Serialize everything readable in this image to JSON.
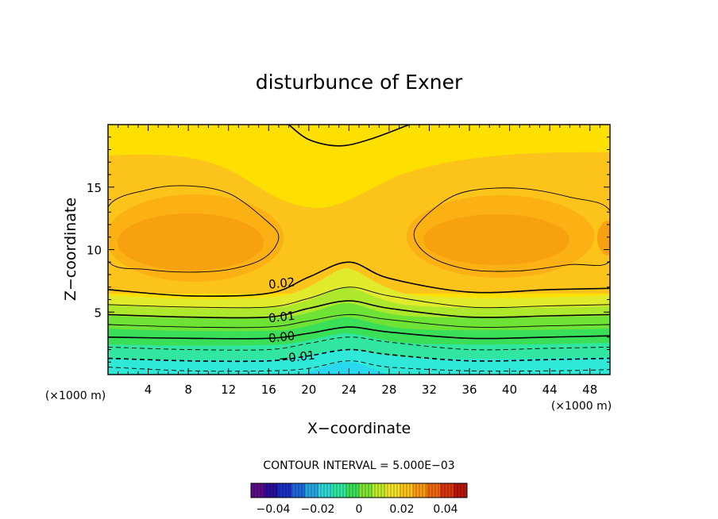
{
  "chart_data": {
    "type": "contour",
    "title": "disturbunce of Exner",
    "xlabel": "X−coordinate",
    "ylabel": "Z−coordinate",
    "x_unit_label": "(×1000 m)",
    "y_unit_label": "(×1000 m)",
    "xlim": [
      0,
      50
    ],
    "ylim": [
      0,
      20
    ],
    "x_ticks": [
      4,
      8,
      12,
      16,
      20,
      24,
      28,
      32,
      36,
      40,
      44,
      48
    ],
    "y_ticks": [
      5,
      10,
      15
    ],
    "contour_interval_label": "CONTOUR INTERVAL = 5.000E−03",
    "contour_interval": 0.005,
    "contour_labels": [
      {
        "text": "0.02",
        "x": 17.3,
        "y": 7.3
      },
      {
        "text": "0.01",
        "x": 17.3,
        "y": 4.6
      },
      {
        "text": "0.00",
        "x": 17.3,
        "y": 3.0
      },
      {
        "text": "−0.01",
        "x": 18.8,
        "y": 1.4
      }
    ],
    "contour_lines": [
      {
        "level": -0.015,
        "style": "dashed",
        "points": [
          [
            0,
            0.6
          ],
          [
            8,
            0.3
          ],
          [
            16,
            0.3
          ],
          [
            20,
            0.5
          ],
          [
            24,
            1.1
          ],
          [
            28,
            0.6
          ],
          [
            36,
            0.3
          ],
          [
            44,
            0.3
          ],
          [
            50,
            0.4
          ]
        ]
      },
      {
        "level": -0.01,
        "style": "dashed",
        "points": [
          [
            0,
            1.3
          ],
          [
            8,
            1.1
          ],
          [
            16,
            1.1
          ],
          [
            20,
            1.5
          ],
          [
            24,
            2.0
          ],
          [
            28,
            1.6
          ],
          [
            36,
            1.1
          ],
          [
            44,
            1.2
          ],
          [
            50,
            1.3
          ]
        ]
      },
      {
        "level": -0.005,
        "style": "dashed",
        "points": [
          [
            0,
            2.2
          ],
          [
            8,
            2.0
          ],
          [
            16,
            2.0
          ],
          [
            20,
            2.5
          ],
          [
            24,
            3.0
          ],
          [
            28,
            2.6
          ],
          [
            36,
            2.0
          ],
          [
            44,
            2.1
          ],
          [
            50,
            2.2
          ]
        ]
      },
      {
        "level": 0.0,
        "style": "solid",
        "points": [
          [
            0,
            3.0
          ],
          [
            8,
            2.9
          ],
          [
            16,
            2.9
          ],
          [
            20,
            3.3
          ],
          [
            24,
            3.8
          ],
          [
            28,
            3.4
          ],
          [
            36,
            2.9
          ],
          [
            44,
            3.0
          ],
          [
            50,
            3.1
          ]
        ]
      },
      {
        "level": 0.005,
        "style": "solid",
        "points": [
          [
            0,
            4.0
          ],
          [
            8,
            3.8
          ],
          [
            16,
            3.8
          ],
          [
            20,
            4.3
          ],
          [
            24,
            4.8
          ],
          [
            28,
            4.4
          ],
          [
            36,
            3.8
          ],
          [
            44,
            3.9
          ],
          [
            50,
            4.0
          ]
        ]
      },
      {
        "level": 0.01,
        "style": "solid",
        "points": [
          [
            0,
            4.8
          ],
          [
            8,
            4.6
          ],
          [
            16,
            4.6
          ],
          [
            20,
            5.3
          ],
          [
            24,
            5.9
          ],
          [
            28,
            5.3
          ],
          [
            36,
            4.6
          ],
          [
            44,
            4.7
          ],
          [
            50,
            4.8
          ]
        ]
      },
      {
        "level": 0.015,
        "style": "solid",
        "points": [
          [
            0,
            5.6
          ],
          [
            8,
            5.4
          ],
          [
            16,
            5.4
          ],
          [
            20,
            6.1
          ],
          [
            24,
            7.0
          ],
          [
            28,
            6.3
          ],
          [
            36,
            5.4
          ],
          [
            44,
            5.5
          ],
          [
            50,
            5.6
          ]
        ]
      },
      {
        "level": 0.02,
        "style": "solid",
        "points": [
          [
            0,
            6.8
          ],
          [
            8,
            6.3
          ],
          [
            16,
            6.5
          ],
          [
            20,
            7.8
          ],
          [
            24,
            9.0
          ],
          [
            28,
            7.7
          ],
          [
            36,
            6.6
          ],
          [
            44,
            6.8
          ],
          [
            50,
            6.9
          ]
        ]
      },
      {
        "level": 0.025,
        "style": "solid",
        "closed": true,
        "points": [
          [
            0,
            13.4
          ],
          [
            4,
            14.8
          ],
          [
            8,
            15.1
          ],
          [
            12,
            14.5
          ],
          [
            15.5,
            12.5
          ],
          [
            17,
            11.0
          ],
          [
            15.5,
            9.3
          ],
          [
            12,
            8.4
          ],
          [
            8,
            8.2
          ],
          [
            4,
            8.4
          ],
          [
            0,
            9.1
          ]
        ]
      },
      {
        "level": 0.025,
        "style": "solid",
        "closed": true,
        "points": [
          [
            50,
            13.1
          ],
          [
            46,
            14.2
          ],
          [
            41,
            14.9
          ],
          [
            36,
            14.7
          ],
          [
            33,
            13.6
          ],
          [
            30.5,
            11.4
          ],
          [
            32,
            9.5
          ],
          [
            36,
            8.4
          ],
          [
            41,
            8.3
          ],
          [
            46,
            8.8
          ],
          [
            50,
            9.1
          ]
        ]
      },
      {
        "level": 0.02,
        "style": "solid",
        "points": [
          [
            18,
            20
          ],
          [
            20,
            18.8
          ],
          [
            23,
            18.3
          ],
          [
            26,
            18.8
          ],
          [
            30,
            20
          ]
        ]
      }
    ],
    "colorbar": {
      "colors": [
        "#5a0d86",
        "#2a0f9a",
        "#1a2fc4",
        "#1f66d9",
        "#26a6de",
        "#2fd6d6",
        "#30e6a0",
        "#3adf58",
        "#7ee332",
        "#c0ea2a",
        "#f2e32a",
        "#fcc31a",
        "#f99a12",
        "#f0680e",
        "#d8340e",
        "#b8160c"
      ],
      "tick_labels": [
        "−0.04",
        "−0.02",
        "0",
        "0.02",
        "0.04"
      ],
      "tick_values": [
        -0.04,
        -0.02,
        0,
        0.02,
        0.04
      ],
      "range": [
        -0.05,
        0.05
      ]
    }
  }
}
